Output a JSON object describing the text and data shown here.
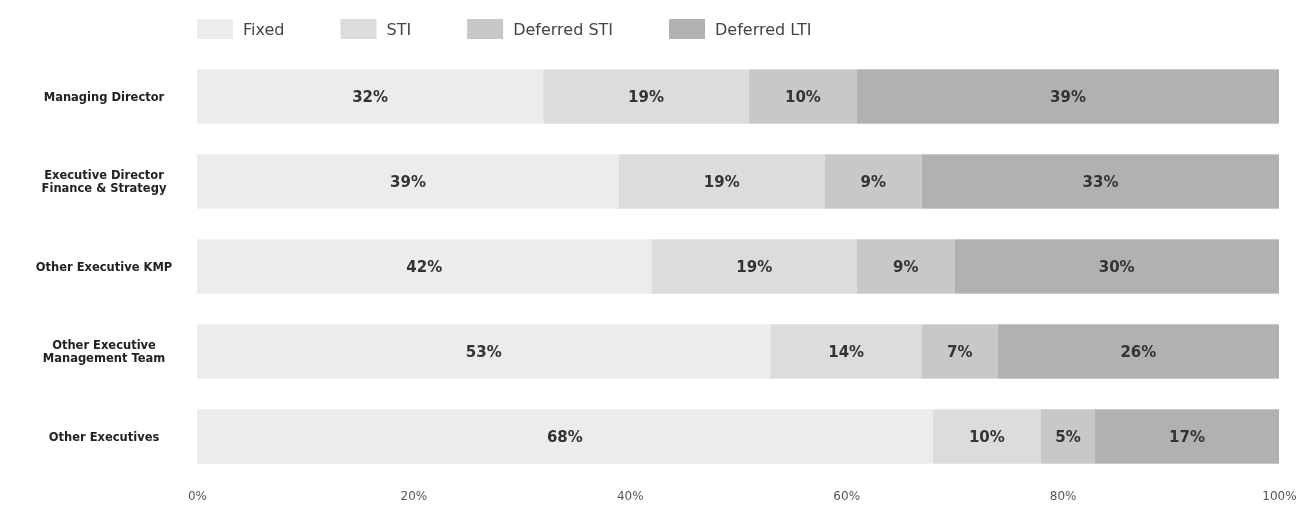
{
  "chart_data": {
    "type": "bar",
    "orientation": "horizontal",
    "stacked": true,
    "categories": [
      "Managing Director",
      "Executive Director\nFinance & Strategy",
      "Other Executive KMP",
      "Other Executive\nManagement Team",
      "Other Executives"
    ],
    "series": [
      {
        "name": "Fixed",
        "color": "#ececec",
        "values": [
          32,
          39,
          42,
          53,
          68
        ],
        "value_labels": [
          "32%",
          "39%",
          "42%",
          "53%",
          "68%"
        ]
      },
      {
        "name": "STI",
        "color": "#dcdcdc",
        "values": [
          19,
          19,
          19,
          14,
          10
        ],
        "value_labels": [
          "19%",
          "19%",
          "19%",
          "14%",
          "10%"
        ]
      },
      {
        "name": "Deferred STI",
        "color": "#c8c8c8",
        "values": [
          10,
          9,
          9,
          7,
          5
        ],
        "value_labels": [
          "10%",
          "9%",
          "9%",
          "7%",
          "5%"
        ]
      },
      {
        "name": "Deferred LTI",
        "color": "#b1b1b1",
        "values": [
          39,
          33,
          30,
          26,
          17
        ],
        "value_labels": [
          "39%",
          "33%",
          "30%",
          "26%",
          "17%"
        ]
      }
    ],
    "xlim": [
      0,
      100
    ],
    "xticks": [
      {
        "value": 0,
        "label": "0%"
      },
      {
        "value": 20,
        "label": "20%"
      },
      {
        "value": 40,
        "label": "40%"
      },
      {
        "value": 60,
        "label": "60%"
      },
      {
        "value": 80,
        "label": "80%"
      },
      {
        "value": 100,
        "label": "100%"
      }
    ],
    "legend": "top left",
    "grid": false
  }
}
